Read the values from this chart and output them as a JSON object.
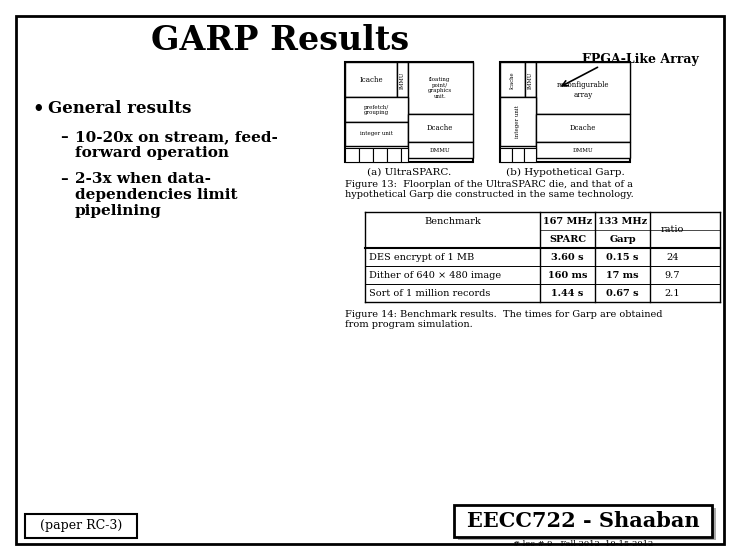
{
  "title": "GARP Results",
  "fpga_label": "FPGA-Like Array",
  "bullet_main": "General results",
  "sub1_line1": "10-20x on stream, feed-",
  "sub1_line2": "forward operation",
  "sub2_line1": "2-3x when data-",
  "sub2_line2": "dependencies limit",
  "sub2_line3": "pipelining",
  "paper_label": "(paper RC-3)",
  "course_label": "EECC722 - Shaaban",
  "bottom_label": "# lec # 9   Fall 2012  10-15-2012",
  "fig_caption_13a": "Figure 13:  Floorplan of the UltraSPARC die, and that of a",
  "fig_caption_13b": "hypothetical Garp die constructed in the same technology.",
  "fig_caption_14a": "Figure 14: Benchmark results.  The times for Garp are obtained",
  "fig_caption_14b": "from program simulation.",
  "table_header_benchmark": "Benchmark",
  "table_header_sparc": "167 MHz\nSPARC",
  "table_header_garp": "133 MHz\nGarp",
  "table_header_ratio": "ratio",
  "table_rows": [
    [
      "DES encrypt of 1 MB",
      "3.60 s",
      "0.15 s",
      "24"
    ],
    [
      "Dither of 640 × 480 image",
      "160 ms",
      "17 ms",
      "9.7"
    ],
    [
      "Sort of 1 million records",
      "1.44 s",
      "0.67 s",
      "2.1"
    ]
  ],
  "sub_fig_a": "(a) UltraSPARC.",
  "sub_fig_b": "(b) Hypothetical Garp.",
  "bg_color": "#ffffff",
  "border_color": "#000000"
}
